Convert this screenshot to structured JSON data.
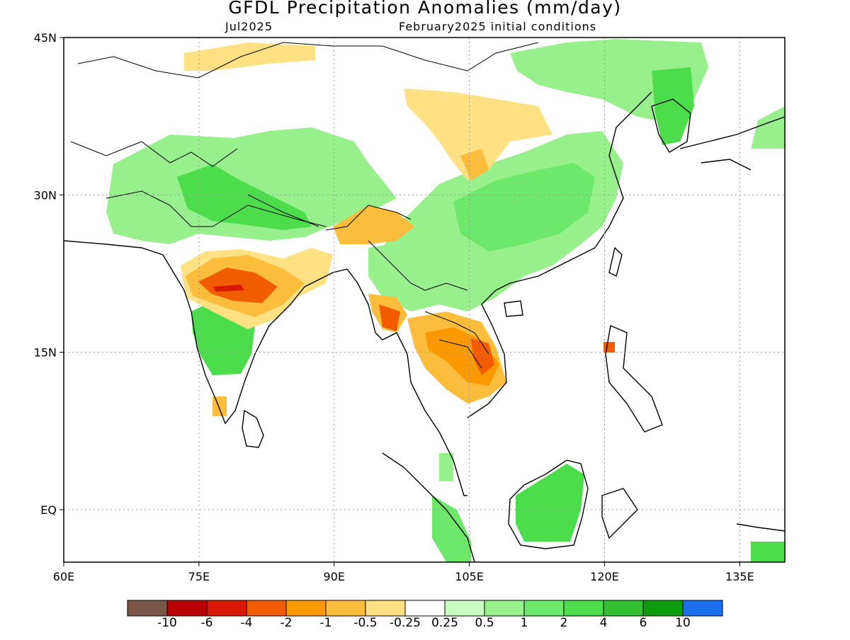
{
  "title": "GFDL Precipitation Anomalies (mm/day)",
  "subtitle_left": "Jul2025",
  "subtitle_right": "February2025 initial conditions",
  "map": {
    "lon_range": [
      60,
      140
    ],
    "lat_range": [
      -5,
      45
    ],
    "lon_ticks": [
      {
        "value": 60,
        "label": "60E"
      },
      {
        "value": 75,
        "label": "75E"
      },
      {
        "value": 90,
        "label": "90E"
      },
      {
        "value": 105,
        "label": "105E"
      },
      {
        "value": 120,
        "label": "120E"
      },
      {
        "value": 135,
        "label": "135E"
      }
    ],
    "lat_ticks": [
      {
        "value": 45,
        "label": "45N"
      },
      {
        "value": 30,
        "label": "30N"
      },
      {
        "value": 15,
        "label": "15N"
      },
      {
        "value": 0,
        "label": "EQ"
      }
    ],
    "gridlines": "dotted"
  },
  "colorbar": {
    "colors": [
      "#7a5548",
      "#b80000",
      "#d81a00",
      "#f25c00",
      "#fa9a00",
      "#fdbd3c",
      "#ffe082",
      "#ffffff",
      "#c8fcc0",
      "#97f08b",
      "#6ee86a",
      "#4cdc4c",
      "#32c032",
      "#0e9c0e",
      "#1e6ef0"
    ],
    "labels": [
      "-10",
      "-6",
      "-4",
      "-2",
      "-1",
      "-0.5",
      "-0.25",
      "0.25",
      "0.5",
      "1",
      "2",
      "4",
      "6",
      "10"
    ]
  }
}
